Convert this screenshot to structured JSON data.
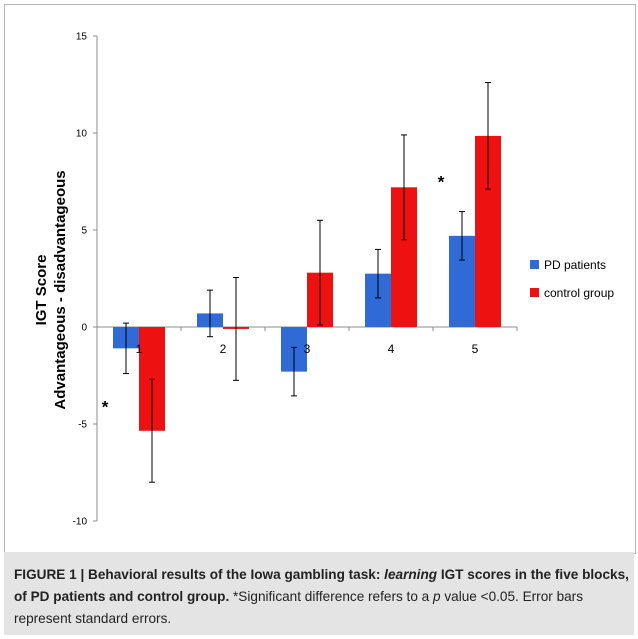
{
  "chart_data": {
    "type": "bar",
    "ylabel_line1": "IGT Score",
    "ylabel_line2": "Advantageous - disadvantageous",
    "ylim": [
      -10,
      15
    ],
    "yticks": [
      -10,
      -5,
      0,
      5,
      10,
      15
    ],
    "ytick_labels": [
      "-10",
      "-5",
      "0",
      "5",
      "10",
      "15"
    ],
    "categories": [
      "1",
      "2",
      "3",
      "4",
      "5"
    ],
    "grid": false,
    "legend_position": "right",
    "series": [
      {
        "name": "PD patients",
        "color": "#2f6ad6",
        "values": [
          -1.1,
          0.7,
          -2.3,
          2.75,
          4.7
        ],
        "errors": [
          1.3,
          1.2,
          1.25,
          1.25,
          1.25
        ]
      },
      {
        "name": "control group",
        "color": "#ee1111",
        "values": [
          -5.35,
          -0.1,
          2.8,
          7.2,
          9.85
        ],
        "errors": [
          2.65,
          2.65,
          2.7,
          2.7,
          2.75
        ]
      }
    ],
    "annotations": [
      {
        "text": "*",
        "category_index": 0,
        "side": "left",
        "y": -4.0
      },
      {
        "text": "*",
        "category_index": 4,
        "side": "left",
        "y": 7.6
      }
    ]
  },
  "caption": {
    "part1": "FIGURE 1 | Behavioral results of the Iowa gambling task: ",
    "part2": "learning",
    "part3": " IGT scores in the five blocks, of PD patients and control group.",
    "part4": " *Significant difference refers to a ",
    "part5": "p",
    "part6": " value <0.05. Error bars represent standard errors."
  }
}
